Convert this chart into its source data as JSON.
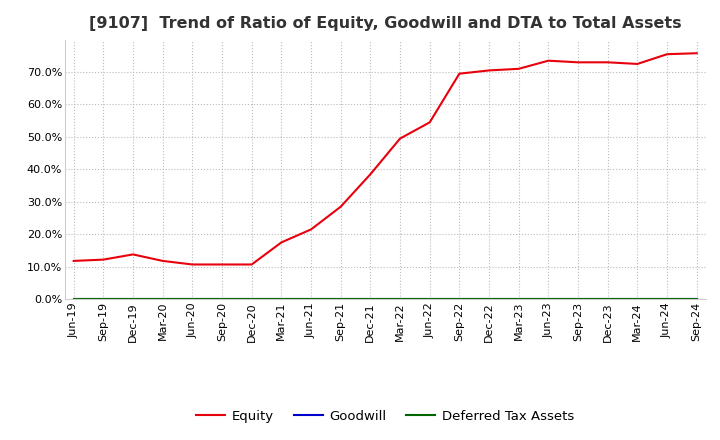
{
  "title": "[9107]  Trend of Ratio of Equity, Goodwill and DTA to Total Assets",
  "x_labels": [
    "Jun-19",
    "Sep-19",
    "Dec-19",
    "Mar-20",
    "Jun-20",
    "Sep-20",
    "Dec-20",
    "Mar-21",
    "Jun-21",
    "Sep-21",
    "Dec-21",
    "Mar-22",
    "Jun-22",
    "Sep-22",
    "Dec-22",
    "Mar-23",
    "Jun-23",
    "Sep-23",
    "Dec-23",
    "Mar-24",
    "Jun-24",
    "Sep-24"
  ],
  "equity": [
    0.118,
    0.122,
    0.138,
    0.118,
    0.107,
    0.107,
    0.107,
    0.175,
    0.215,
    0.285,
    0.385,
    0.495,
    0.545,
    0.695,
    0.705,
    0.71,
    0.735,
    0.73,
    0.73,
    0.725,
    0.755,
    0.758
  ],
  "goodwill": [
    0.0,
    0.0,
    0.0,
    0.0,
    0.0,
    0.0,
    0.0,
    0.0,
    0.0,
    0.0,
    0.0,
    0.0,
    0.0,
    0.0,
    0.0,
    0.0,
    0.0,
    0.0,
    0.0,
    0.0,
    0.0,
    0.0
  ],
  "deferred_tax": [
    0.0,
    0.0,
    0.0,
    0.0,
    0.0,
    0.0,
    0.0,
    0.0,
    0.0,
    0.0,
    0.0,
    0.0,
    0.0,
    0.0,
    0.0,
    0.0,
    0.0,
    0.0,
    0.0,
    0.0,
    0.0,
    0.0
  ],
  "equity_color": "#e8000d",
  "goodwill_color": "#0000cc",
  "deferred_tax_color": "#006600",
  "ylim": [
    0.0,
    0.8
  ],
  "yticks": [
    0.0,
    0.1,
    0.2,
    0.3,
    0.4,
    0.5,
    0.6,
    0.7
  ],
  "background_color": "#ffffff",
  "plot_bg_color": "#ffffff",
  "grid_color": "#bbbbbb",
  "title_fontsize": 11.5,
  "legend_fontsize": 9.5,
  "tick_fontsize": 8.0
}
